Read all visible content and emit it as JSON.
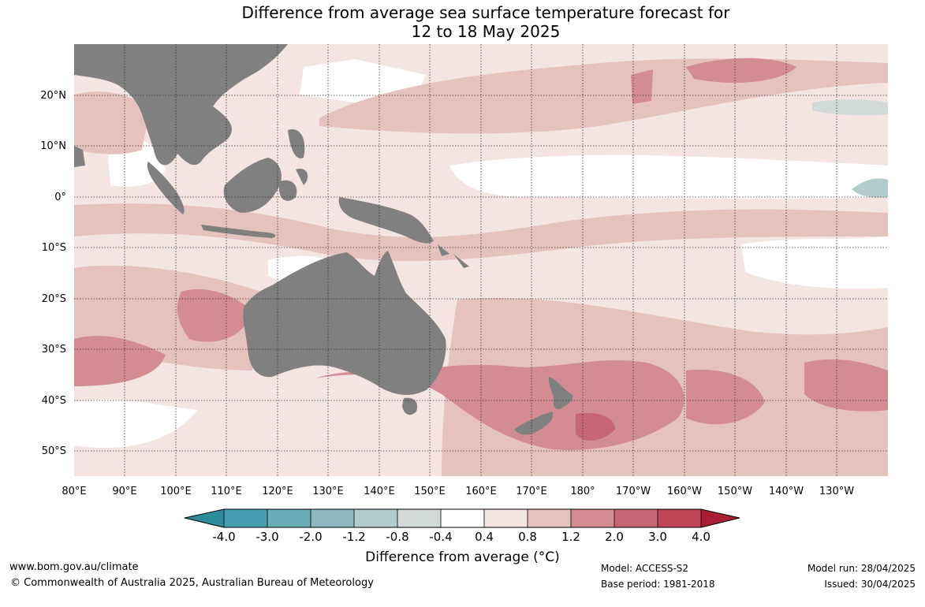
{
  "title": {
    "line1": "Difference from average sea surface temperature forecast for",
    "line2": "12 to 18 May 2025"
  },
  "map": {
    "lat_labels": [
      "20°N",
      "10°N",
      "0°",
      "10°S",
      "20°S",
      "30°S",
      "40°S",
      "50°S"
    ],
    "lon_labels": [
      "80°E",
      "90°E",
      "100°E",
      "110°E",
      "120°E",
      "130°E",
      "140°E",
      "150°E",
      "160°E",
      "170°E",
      "180°",
      "170°W",
      "160°W",
      "150°W",
      "140°W",
      "130°W"
    ],
    "land_color": "#808080",
    "land_names": [
      "asia-landmass-icon",
      "borneo-island-icon",
      "sumatra-island-icon",
      "new-guinea-island-icon",
      "australia-landmass-icon",
      "tasmania-island-icon",
      "new-zealand-north-island-icon",
      "new-zealand-south-island-icon"
    ]
  },
  "colorbar": {
    "title": "Difference from average (°C)",
    "ticks": [
      "-4.0",
      "-3.0",
      "-2.0",
      "-1.2",
      "-0.8",
      "-0.4",
      "0.4",
      "0.8",
      "1.2",
      "2.0",
      "3.0",
      "4.0"
    ],
    "colors": [
      "#2e8b9a",
      "#47a0b1",
      "#6aabb8",
      "#8dbac1",
      "#b2ccce",
      "#d2dad9",
      "#ffffff",
      "#f4e4e2",
      "#e6c2be",
      "#d48c93",
      "#c76674",
      "#bf4454",
      "#a81e36"
    ]
  },
  "footer": {
    "website": "www.bom.gov.au/climate",
    "copyright": "© Commonwealth of Australia 2025, Australian Bureau of Meteorology",
    "model": "Model: ACCESS-S2",
    "base_period": "Base period: 1981-2018",
    "model_run": "Model run: 28/04/2025",
    "issued": "Issued: 30/04/2025"
  }
}
